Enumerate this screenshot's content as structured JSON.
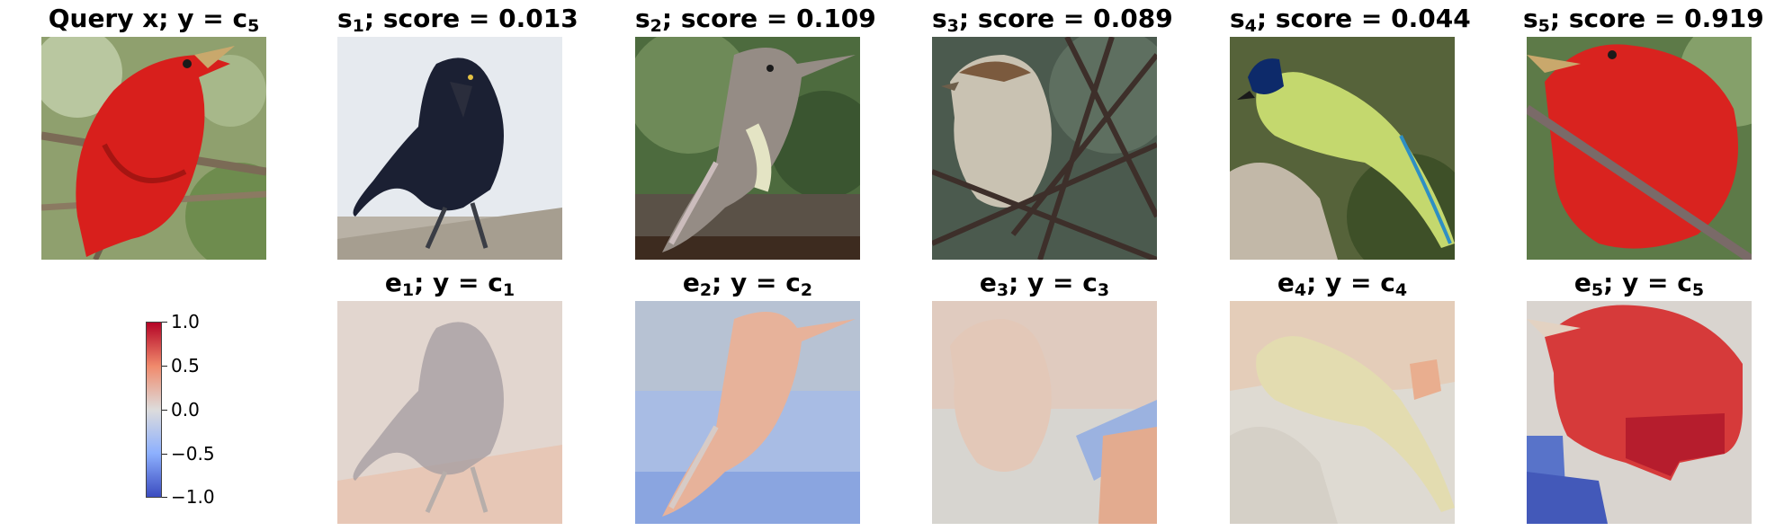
{
  "query": {
    "prefix": "Query x; y = c",
    "sub": "5"
  },
  "top_row": [
    {
      "sym": "s",
      "sub": "1",
      "text": "; score = 0.013"
    },
    {
      "sym": "s",
      "sub": "2",
      "text": "; score = 0.109"
    },
    {
      "sym": "s",
      "sub": "3",
      "text": "; score = 0.089"
    },
    {
      "sym": "s",
      "sub": "4",
      "text": "; score = 0.044"
    },
    {
      "sym": "s",
      "sub": "5",
      "text": "; score = 0.919"
    }
  ],
  "bottom_row": [
    {
      "sym": "e",
      "sub": "1",
      "text": "; y = c",
      "sub2": "1"
    },
    {
      "sym": "e",
      "sub": "2",
      "text": "; y = c",
      "sub2": "2"
    },
    {
      "sym": "e",
      "sub": "3",
      "text": "; y = c",
      "sub2": "3"
    },
    {
      "sym": "e",
      "sub": "4",
      "text": "; y = c",
      "sub2": "4"
    },
    {
      "sym": "e",
      "sub": "5",
      "text": "; y = c",
      "sub2": "5"
    }
  ],
  "colorbar": {
    "ticks": [
      "1.0",
      "0.5",
      "0.0",
      "−0.5",
      "−1.0"
    ],
    "colors": {
      "high": "#b40426",
      "mid": "#dddcdc",
      "low": "#3b4cc0"
    }
  }
}
